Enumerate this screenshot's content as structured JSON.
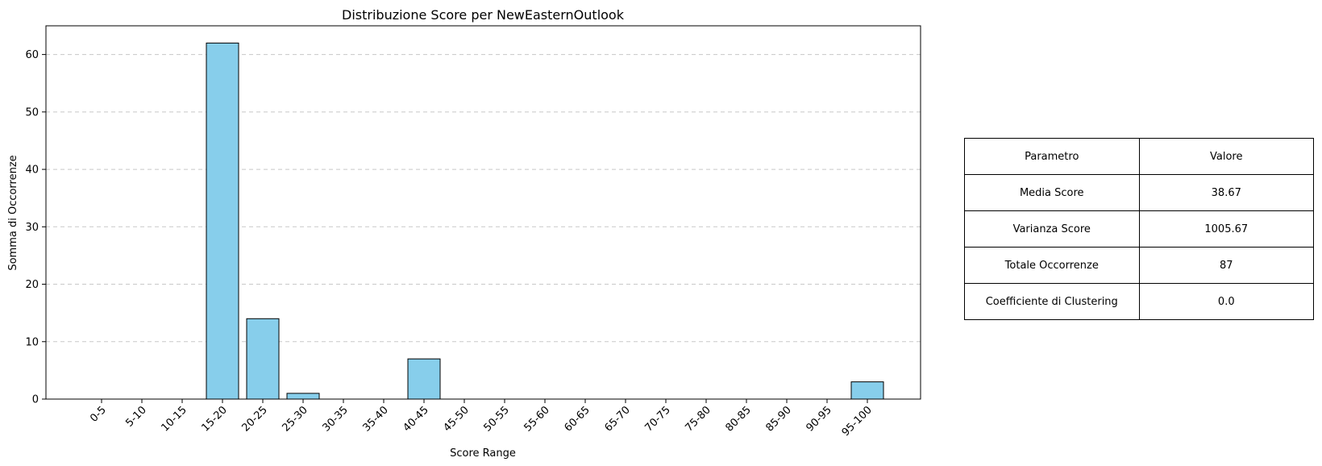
{
  "chart_data": {
    "type": "bar",
    "title": "Distribuzione Score per NewEasternOutlook",
    "xlabel": "Score Range",
    "ylabel": "Somma di Occorrenze",
    "categories": [
      "0-5",
      "5-10",
      "10-15",
      "15-20",
      "20-25",
      "25-30",
      "30-35",
      "35-40",
      "40-45",
      "45-50",
      "50-55",
      "55-60",
      "60-65",
      "65-70",
      "70-75",
      "75-80",
      "80-85",
      "85-90",
      "90-95",
      "95-100"
    ],
    "values": [
      0,
      0,
      0,
      62,
      14,
      1,
      0,
      0,
      7,
      0,
      0,
      0,
      0,
      0,
      0,
      0,
      0,
      0,
      0,
      3
    ],
    "ylim": [
      0,
      65
    ],
    "yticks": [
      0,
      10,
      20,
      30,
      40,
      50,
      60
    ],
    "grid": "y-dashed",
    "bar_color": "#87ceeb",
    "edge_color": "#000000"
  },
  "table": {
    "header": {
      "param": "Parametro",
      "value": "Valore"
    },
    "rows": [
      {
        "param": "Media Score",
        "value": "38.67"
      },
      {
        "param": "Varianza Score",
        "value": "1005.67"
      },
      {
        "param": "Totale Occorrenze",
        "value": "87"
      },
      {
        "param": "Coefficiente di Clustering",
        "value": "0.0"
      }
    ]
  }
}
